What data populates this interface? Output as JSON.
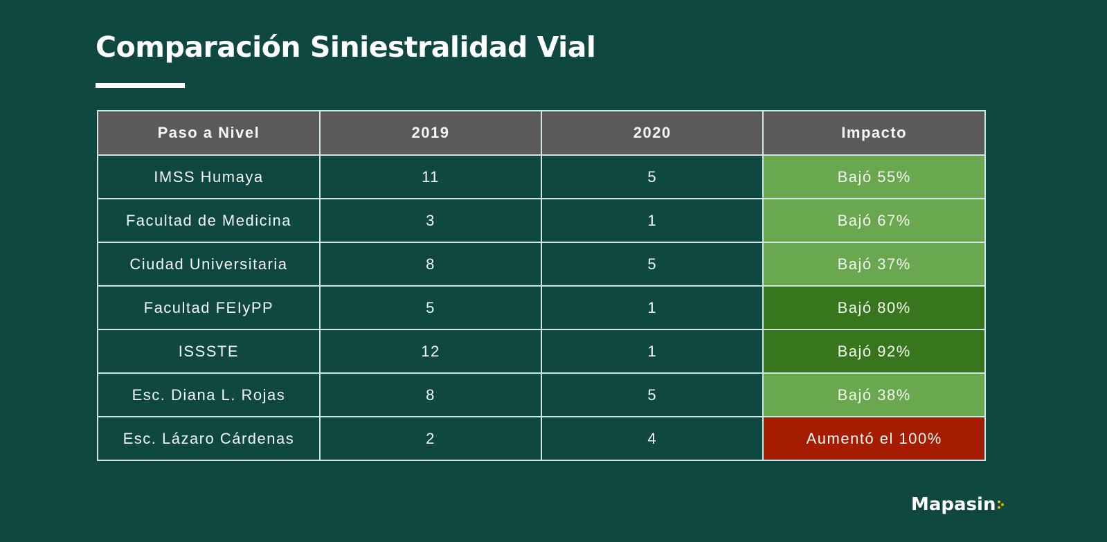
{
  "title": "Comparación Siniestralidad Vial",
  "brand": "Mapasin",
  "colors": {
    "background": "#0f4841",
    "header": "#5a5a5a",
    "impact_light_green": "#6aa84f",
    "impact_dark_green": "#38761d",
    "impact_red": "#a61c00",
    "logo_accent": "#e3b800"
  },
  "chart_data": {
    "type": "table",
    "title": "Comparación Siniestralidad Vial",
    "columns": [
      "Paso a Nivel",
      "2019",
      "2020",
      "Impacto"
    ],
    "rows": [
      {
        "name": "IMSS Humaya",
        "y2019": "11",
        "y2020": "5",
        "impact": "Bajó 55%",
        "impact_level": "light"
      },
      {
        "name": "Facultad de Medicina",
        "y2019": "3",
        "y2020": "1",
        "impact": "Bajó 67%",
        "impact_level": "light"
      },
      {
        "name": "Ciudad Universitaria",
        "y2019": "8",
        "y2020": "5",
        "impact": "Bajó 37%",
        "impact_level": "light"
      },
      {
        "name": "Facultad FEIyPP",
        "y2019": "5",
        "y2020": "1",
        "impact": "Bajó 80%",
        "impact_level": "dark"
      },
      {
        "name": "ISSSTE",
        "y2019": "12",
        "y2020": "1",
        "impact": "Bajó 92%",
        "impact_level": "dark"
      },
      {
        "name": "Esc. Diana L. Rojas",
        "y2019": "8",
        "y2020": "5",
        "impact": "Bajó 38%",
        "impact_level": "light"
      },
      {
        "name": "Esc. Lázaro Cárdenas",
        "y2019": "2",
        "y2020": "4",
        "impact": "Aumentó el 100%",
        "impact_level": "red"
      }
    ]
  }
}
